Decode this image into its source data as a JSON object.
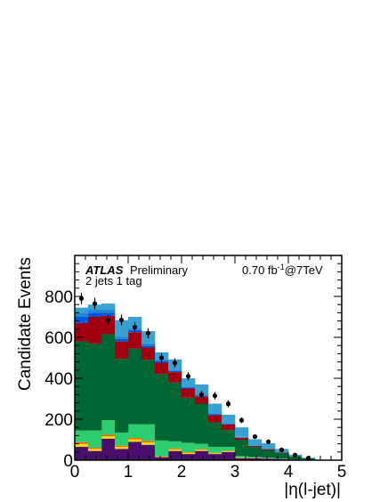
{
  "chart_data": {
    "type": "bar",
    "stacked": true,
    "xlabel": "|η(l-jet)|",
    "ylabel": "Candidate Events",
    "xlim": [
      0,
      5
    ],
    "ylim": [
      0,
      1000
    ],
    "x_ticks": [
      0,
      1,
      2,
      3,
      4,
      5
    ],
    "y_ticks": [
      0,
      200,
      400,
      600,
      800
    ],
    "bin_edges": [
      0,
      0.25,
      0.5,
      0.75,
      1.0,
      1.25,
      1.5,
      1.75,
      2.0,
      2.25,
      2.5,
      2.75,
      3.0,
      3.25,
      3.5,
      3.75,
      4.0,
      4.25,
      4.5
    ],
    "annotations": {
      "atlas": "ATLAS",
      "preliminary": "Preliminary",
      "selection": "2 jets 1 tag",
      "lumi_prefix": "0.70 fb",
      "lumi_exp": "-1",
      "lumi_suffix": "@7TeV"
    },
    "series": [
      {
        "color": "#4a0f6b",
        "values": [
          65,
          45,
          105,
          55,
          90,
          75,
          15,
          45,
          30,
          45,
          30,
          40,
          10,
          10,
          8,
          5,
          3,
          2
        ]
      },
      {
        "color": "#f2d600",
        "values": [
          15,
          10,
          12,
          10,
          12,
          12,
          3,
          8,
          6,
          6,
          4,
          4,
          2,
          1,
          1,
          0,
          0,
          0
        ]
      },
      {
        "color": "#ff6600",
        "values": [
          8,
          6,
          7,
          6,
          7,
          7,
          2,
          4,
          3,
          3,
          2,
          2,
          1,
          1,
          0,
          0,
          0,
          0
        ]
      },
      {
        "color": "#2ecc71",
        "values": [
          57,
          84,
          71,
          64,
          66,
          81,
          76,
          35,
          46,
          26,
          29,
          19,
          7,
          3,
          3,
          2,
          1,
          1
        ]
      },
      {
        "color": "#006633",
        "values": [
          435,
          425,
          420,
          360,
          370,
          315,
          325,
          288,
          220,
          196,
          120,
          82,
          80,
          50,
          38,
          28,
          14,
          6
        ]
      },
      {
        "color": "#a00010",
        "values": [
          90,
          130,
          90,
          85,
          80,
          60,
          55,
          50,
          45,
          34,
          35,
          28,
          10,
          5,
          4,
          2,
          1,
          0
        ]
      },
      {
        "color": "#0055dd",
        "values": [
          30,
          20,
          15,
          12,
          10,
          10,
          8,
          6,
          5,
          5,
          4,
          3,
          2,
          1,
          1,
          0,
          0,
          0
        ]
      },
      {
        "color": "#1e88d8",
        "values": [
          20,
          15,
          15,
          12,
          10,
          10,
          8,
          6,
          5,
          5,
          4,
          3,
          2,
          1,
          1,
          0,
          0,
          0
        ]
      },
      {
        "color": "#3aa0d0",
        "values": [
          25,
          25,
          30,
          80,
          55,
          60,
          35,
          50,
          40,
          50,
          48,
          41,
          46,
          30,
          27,
          18,
          8,
          3
        ]
      }
    ],
    "data_points": {
      "x": [
        0.125,
        0.375,
        0.625,
        0.875,
        1.125,
        1.375,
        1.625,
        1.875,
        2.125,
        2.375,
        2.625,
        2.875,
        3.125,
        3.375,
        3.625,
        3.875,
        4.125,
        4.375
      ],
      "y": [
        790,
        765,
        685,
        685,
        650,
        620,
        500,
        475,
        410,
        320,
        315,
        275,
        195,
        115,
        90,
        50,
        25,
        10
      ],
      "err": [
        28,
        28,
        26,
        26,
        25,
        25,
        22,
        22,
        20,
        18,
        18,
        17,
        14,
        11,
        10,
        7,
        5,
        3
      ],
      "color": "#000000"
    }
  }
}
